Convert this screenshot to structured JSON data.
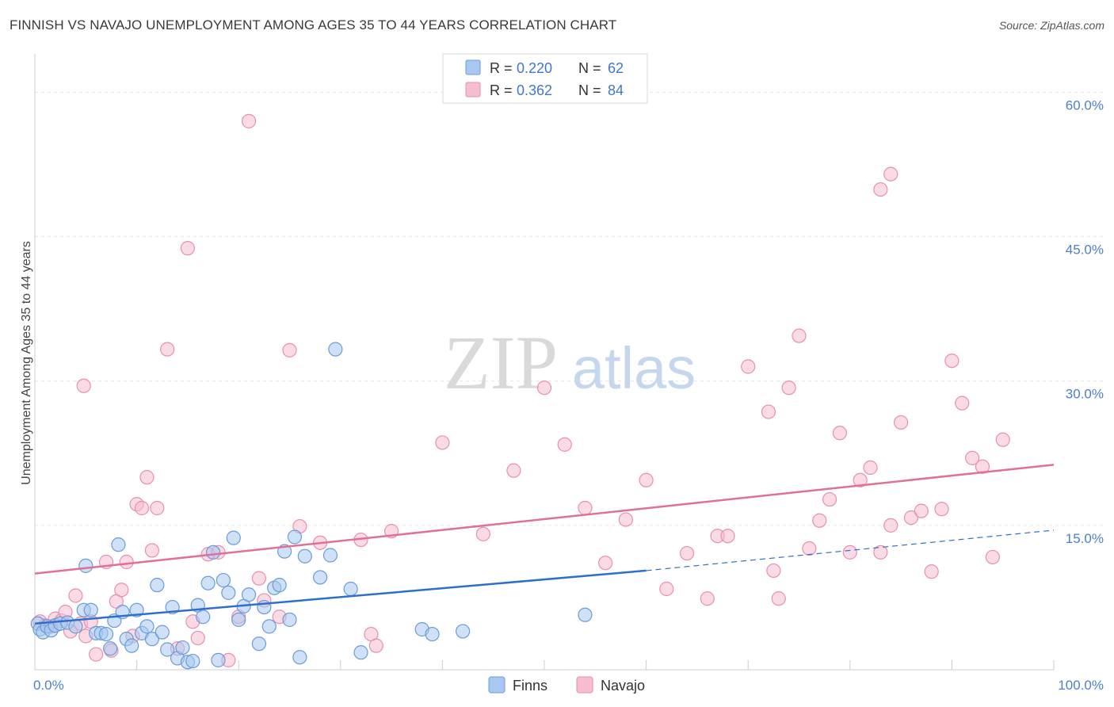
{
  "header": {
    "title": "FINNISH VS NAVAJO UNEMPLOYMENT AMONG AGES 35 TO 44 YEARS CORRELATION CHART",
    "source": "Source: ZipAtlas.com"
  },
  "watermark": {
    "zip": "ZIP",
    "atlas": "atlas"
  },
  "legend_top": {
    "rows": [
      {
        "r_label": "R = ",
        "r_value": "0.220",
        "n_label": "N = ",
        "n_value": "62"
      },
      {
        "r_label": "R = ",
        "r_value": "0.362",
        "n_label": "N = ",
        "n_value": "84"
      }
    ]
  },
  "legend_bottom": {
    "items": [
      "Finns",
      "Navajo"
    ]
  },
  "colors": {
    "finns_fill": "#a8c8f0",
    "finns_stroke": "#6b9bd8",
    "finns_line": "#2f6fcc",
    "navajo_fill": "#f6bcd0",
    "navajo_stroke": "#e690b0",
    "navajo_line": "#e07099",
    "tick_label": "#4a7fcf",
    "grid": "#e6e6e6"
  },
  "chart_data": {
    "type": "scatter",
    "title": "FINNISH VS NAVAJO UNEMPLOYMENT AMONG AGES 35 TO 44 YEARS CORRELATION CHART",
    "xlabel": "",
    "ylabel": "Unemployment Among Ages 35 to 44 years",
    "xlim": [
      0,
      100
    ],
    "ylim": [
      0,
      63
    ],
    "x_tick_labels": [
      "0.0%",
      "100.0%"
    ],
    "y_ticks": [
      15,
      30,
      45,
      60
    ],
    "y_tick_labels": [
      "15.0%",
      "30.0%",
      "45.0%",
      "60.0%"
    ],
    "grid": true,
    "legend_position": "top-center",
    "series": [
      {
        "name": "Finns",
        "r": 0.22,
        "n": 62,
        "trend": {
          "x": [
            0,
            60
          ],
          "y": [
            4.8,
            10.3
          ],
          "dashed_to": [
            100,
            14.5
          ]
        },
        "points": [
          [
            0.3,
            4.8
          ],
          [
            0.5,
            4.2
          ],
          [
            0.8,
            3.9
          ],
          [
            1.2,
            4.5
          ],
          [
            1.6,
            4.1
          ],
          [
            2,
            4.6
          ],
          [
            2.5,
            4.8
          ],
          [
            3.2,
            4.9
          ],
          [
            4,
            4.5
          ],
          [
            4.8,
            6.2
          ],
          [
            5,
            10.8
          ],
          [
            5.5,
            6.2
          ],
          [
            6,
            3.8
          ],
          [
            6.5,
            3.8
          ],
          [
            7,
            3.7
          ],
          [
            7.4,
            2.2
          ],
          [
            7.8,
            5.1
          ],
          [
            8.2,
            13
          ],
          [
            8.6,
            6
          ],
          [
            9,
            3.2
          ],
          [
            9.5,
            2.5
          ],
          [
            10,
            6.2
          ],
          [
            10.5,
            3.8
          ],
          [
            11,
            4.5
          ],
          [
            11.5,
            3.2
          ],
          [
            12,
            8.8
          ],
          [
            12.5,
            3.9
          ],
          [
            13,
            2.1
          ],
          [
            13.5,
            6.5
          ],
          [
            14,
            1.2
          ],
          [
            14.5,
            2.3
          ],
          [
            15,
            0.8
          ],
          [
            15.5,
            0.9
          ],
          [
            16,
            6.7
          ],
          [
            16.5,
            5.5
          ],
          [
            17,
            9
          ],
          [
            17.5,
            12.2
          ],
          [
            18,
            1
          ],
          [
            18.5,
            9.3
          ],
          [
            19,
            8
          ],
          [
            19.5,
            13.7
          ],
          [
            20,
            5.2
          ],
          [
            20.5,
            6.6
          ],
          [
            21,
            7.8
          ],
          [
            22,
            2.7
          ],
          [
            22.5,
            6.5
          ],
          [
            23,
            4.5
          ],
          [
            23.5,
            8.5
          ],
          [
            24,
            8.8
          ],
          [
            24.5,
            12.3
          ],
          [
            25,
            5.2
          ],
          [
            25.5,
            13.8
          ],
          [
            26,
            1.3
          ],
          [
            26.5,
            11.8
          ],
          [
            28,
            9.6
          ],
          [
            29,
            11.9
          ],
          [
            31,
            8.4
          ],
          [
            32,
            1.8
          ],
          [
            29.5,
            33.3
          ],
          [
            38,
            4.2
          ],
          [
            39,
            3.7
          ],
          [
            42,
            4
          ],
          [
            54,
            5.7
          ]
        ]
      },
      {
        "name": "Navajo",
        "r": 0.362,
        "n": 84,
        "trend": {
          "x": [
            0,
            100
          ],
          "y": [
            10,
            21.3
          ]
        },
        "points": [
          [
            0.5,
            5
          ],
          [
            1,
            4.6
          ],
          [
            1.6,
            4.5
          ],
          [
            2,
            5.3
          ],
          [
            2.6,
            5.1
          ],
          [
            3,
            6
          ],
          [
            3.5,
            4
          ],
          [
            4,
            7.7
          ],
          [
            4.5,
            4.8
          ],
          [
            4.8,
            29.5
          ],
          [
            5,
            3.5
          ],
          [
            5.5,
            5
          ],
          [
            6,
            1.6
          ],
          [
            7,
            11.2
          ],
          [
            7.5,
            2
          ],
          [
            8,
            7.1
          ],
          [
            8.5,
            8.3
          ],
          [
            9,
            11.2
          ],
          [
            9.6,
            3.5
          ],
          [
            10,
            17.2
          ],
          [
            10.5,
            16.8
          ],
          [
            11,
            20
          ],
          [
            11.5,
            12.4
          ],
          [
            12,
            16.8
          ],
          [
            13,
            33.3
          ],
          [
            14,
            2.2
          ],
          [
            15,
            43.8
          ],
          [
            15.5,
            5
          ],
          [
            16,
            3.3
          ],
          [
            17,
            12
          ],
          [
            18,
            12.2
          ],
          [
            19,
            1
          ],
          [
            20,
            5.5
          ],
          [
            21,
            57
          ],
          [
            22,
            9.5
          ],
          [
            22.5,
            7.2
          ],
          [
            24,
            5.5
          ],
          [
            25,
            33.2
          ],
          [
            26,
            14.9
          ],
          [
            28,
            13.2
          ],
          [
            32,
            13.5
          ],
          [
            33,
            3.7
          ],
          [
            33.5,
            2.5
          ],
          [
            35,
            14.4
          ],
          [
            40,
            23.6
          ],
          [
            44,
            14.1
          ],
          [
            47,
            20.7
          ],
          [
            50,
            29.3
          ],
          [
            52,
            23.4
          ],
          [
            54,
            16.8
          ],
          [
            56,
            11.1
          ],
          [
            58,
            15.6
          ],
          [
            60,
            19.7
          ],
          [
            62,
            8.4
          ],
          [
            64,
            12.1
          ],
          [
            66,
            7.4
          ],
          [
            67,
            13.9
          ],
          [
            68,
            13.9
          ],
          [
            70,
            31.5
          ],
          [
            72,
            26.8
          ],
          [
            72.5,
            10.3
          ],
          [
            73,
            7.4
          ],
          [
            74,
            29.3
          ],
          [
            75,
            34.7
          ],
          [
            76,
            12.6
          ],
          [
            77,
            15.5
          ],
          [
            78,
            17.7
          ],
          [
            79,
            24.6
          ],
          [
            80,
            12.2
          ],
          [
            81,
            19.7
          ],
          [
            82,
            21
          ],
          [
            83,
            12.2
          ],
          [
            84,
            15
          ],
          [
            85,
            25.7
          ],
          [
            86,
            15.8
          ],
          [
            87,
            16.5
          ],
          [
            88,
            10.2
          ],
          [
            89,
            16.7
          ],
          [
            90,
            32.1
          ],
          [
            91,
            27.7
          ],
          [
            92,
            22
          ],
          [
            93,
            21.1
          ],
          [
            94,
            11.7
          ],
          [
            95,
            23.9
          ],
          [
            83,
            49.9
          ],
          [
            84,
            51.5
          ]
        ]
      }
    ]
  }
}
